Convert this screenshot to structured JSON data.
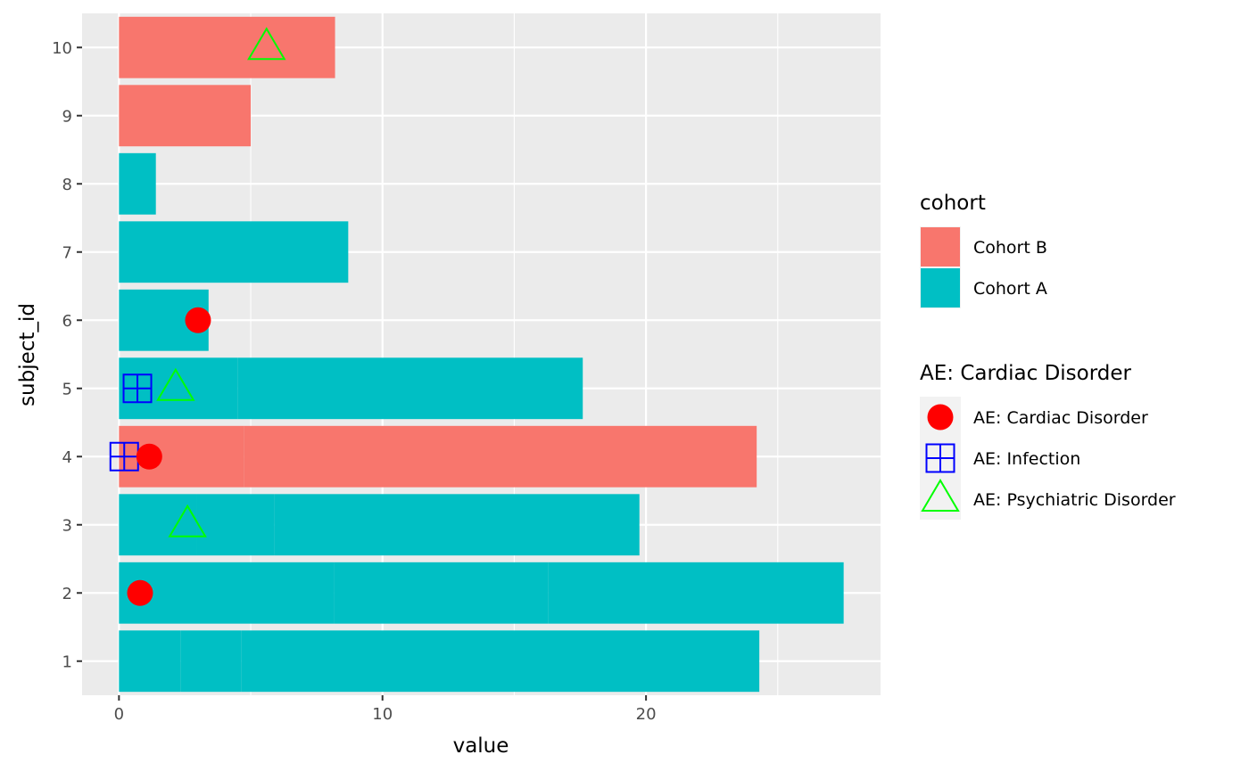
{
  "chart_data": {
    "type": "bar",
    "orientation": "horizontal",
    "stacked": true,
    "xlabel": "value",
    "ylabel": "subject_id",
    "xlim": [
      -1.4,
      28.9
    ],
    "ylim": [
      0.5,
      10.5
    ],
    "x_ticks": [
      0,
      10,
      20
    ],
    "y_ticks": [
      1,
      2,
      3,
      4,
      5,
      6,
      7,
      8,
      9,
      10
    ],
    "grid": true,
    "background": "#ebebeb",
    "subjects": [
      {
        "subject_id": 1,
        "cohort": "Cohort A",
        "segments": [
          2.35,
          2.3,
          19.65
        ]
      },
      {
        "subject_id": 2,
        "cohort": "Cohort A",
        "segments": [
          8.15,
          8.15,
          11.2
        ]
      },
      {
        "subject_id": 3,
        "cohort": "Cohort A",
        "segments": [
          2.95,
          2.95,
          13.85
        ]
      },
      {
        "subject_id": 4,
        "cohort": "Cohort B",
        "segments": [
          4.75,
          19.45
        ]
      },
      {
        "subject_id": 5,
        "cohort": "Cohort A",
        "segments": [
          4.5,
          13.1
        ]
      },
      {
        "subject_id": 6,
        "cohort": "Cohort A",
        "segments": [
          3.4
        ]
      },
      {
        "subject_id": 7,
        "cohort": "Cohort A",
        "segments": [
          8.7
        ]
      },
      {
        "subject_id": 8,
        "cohort": "Cohort A",
        "segments": [
          1.4
        ]
      },
      {
        "subject_id": 9,
        "cohort": "Cohort B",
        "segments": [
          5.0
        ]
      },
      {
        "subject_id": 10,
        "cohort": "Cohort B",
        "segments": [
          8.2
        ]
      }
    ],
    "events": [
      {
        "subject_id": 2,
        "x": 0.8,
        "type": "AE: Cardiac Disorder"
      },
      {
        "subject_id": 3,
        "x": 2.6,
        "type": "AE: Psychiatric Disorder"
      },
      {
        "subject_id": 4,
        "x": 0.2,
        "type": "AE: Infection"
      },
      {
        "subject_id": 4,
        "x": 1.15,
        "type": "AE: Cardiac Disorder"
      },
      {
        "subject_id": 5,
        "x": 0.7,
        "type": "AE: Infection"
      },
      {
        "subject_id": 5,
        "x": 2.15,
        "type": "AE: Psychiatric Disorder"
      },
      {
        "subject_id": 6,
        "x": 3.0,
        "type": "AE: Cardiac Disorder"
      },
      {
        "subject_id": 10,
        "x": 5.6,
        "type": "AE: Psychiatric Disorder"
      }
    ],
    "legends": {
      "cohort": {
        "title": "cohort",
        "items": [
          {
            "label": "Cohort B",
            "color": "#f8766d"
          },
          {
            "label": "Cohort A",
            "color": "#00bfc4"
          }
        ]
      },
      "events": {
        "title": "AE: Cardiac Disorder",
        "items": [
          {
            "label": "AE: Cardiac Disorder",
            "shape": "filled-circle",
            "color": "#ff0000"
          },
          {
            "label": "AE: Infection",
            "shape": "squared-plus",
            "color": "#0000ff"
          },
          {
            "label": "AE: Psychiatric Disorder",
            "shape": "open-triangle",
            "color": "#00ff00"
          }
        ]
      }
    },
    "legend_position": "right"
  }
}
